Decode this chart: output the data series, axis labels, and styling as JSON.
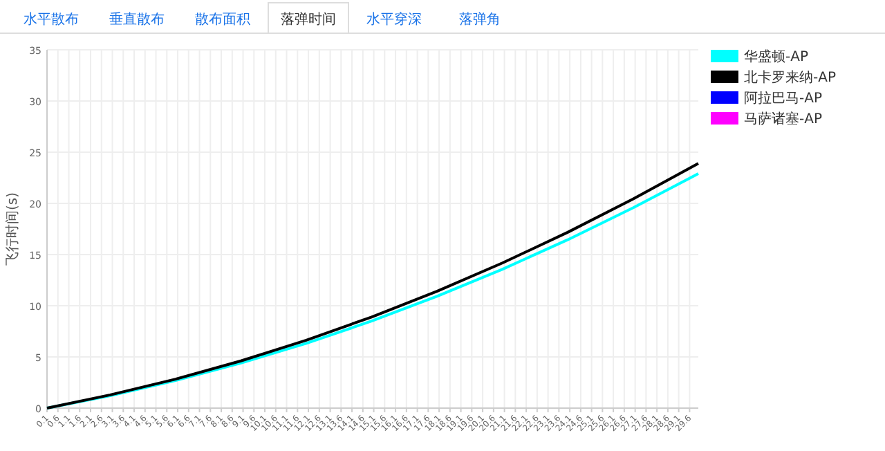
{
  "chart_data": {
    "type": "line",
    "ylabel": "飞行时间(s)",
    "annotations": [
      "水平散布",
      "垂直散布",
      "散布面积",
      "落弹时间",
      "水平穿深",
      "落弹角"
    ],
    "x": [
      0.1,
      3,
      6,
      9,
      12,
      15,
      18,
      21,
      24,
      27,
      30
    ],
    "series": [
      {
        "name": "华盛顿-AP",
        "color": "#00ffff",
        "values": [
          0,
          1.22,
          2.7,
          4.4,
          6.33,
          8.5,
          10.92,
          13.56,
          16.44,
          19.56,
          22.9
        ]
      },
      {
        "name": "北卡罗来纳-AP",
        "color": "#000000",
        "values": [
          0,
          1.29,
          2.83,
          4.61,
          6.63,
          8.9,
          11.41,
          14.17,
          17.17,
          20.42,
          23.9
        ]
      },
      {
        "name": "阿拉巴马-AP",
        "color": "#0000ff",
        "values": [
          null,
          null,
          null,
          null,
          null,
          null,
          null,
          null,
          null,
          null,
          null
        ]
      },
      {
        "name": "马萨诸塞-AP",
        "color": "#ff00ff",
        "values": [
          null,
          null,
          null,
          null,
          null,
          null,
          null,
          null,
          null,
          null,
          null
        ]
      }
    ],
    "xlim": [
      0.1,
      30
    ],
    "xticks": [
      0.1,
      0.6,
      1.1,
      1.6,
      2.1,
      2.6,
      3.1,
      3.6,
      4.1,
      4.6,
      5.1,
      5.6,
      6.1,
      6.6,
      7.1,
      7.6,
      8.1,
      8.6,
      9.1,
      9.6,
      10.1,
      10.6,
      11.1,
      11.6,
      12.1,
      12.6,
      13.1,
      13.6,
      14.1,
      14.6,
      15.1,
      15.6,
      16.1,
      16.6,
      17.1,
      17.6,
      18.1,
      18.6,
      19.1,
      19.6,
      20.1,
      20.6,
      21.1,
      21.6,
      22.1,
      22.6,
      23.1,
      23.6,
      24.1,
      24.6,
      25.1,
      25.6,
      26.1,
      26.6,
      27.1,
      27.6,
      28.1,
      28.6,
      29.1,
      29.6
    ],
    "ylim": [
      0,
      35
    ],
    "yticks": [
      0,
      5,
      10,
      15,
      20,
      25,
      30,
      35
    ],
    "grid": true,
    "legend": "top right",
    "marker": "none",
    "line_style": "solid"
  }
}
